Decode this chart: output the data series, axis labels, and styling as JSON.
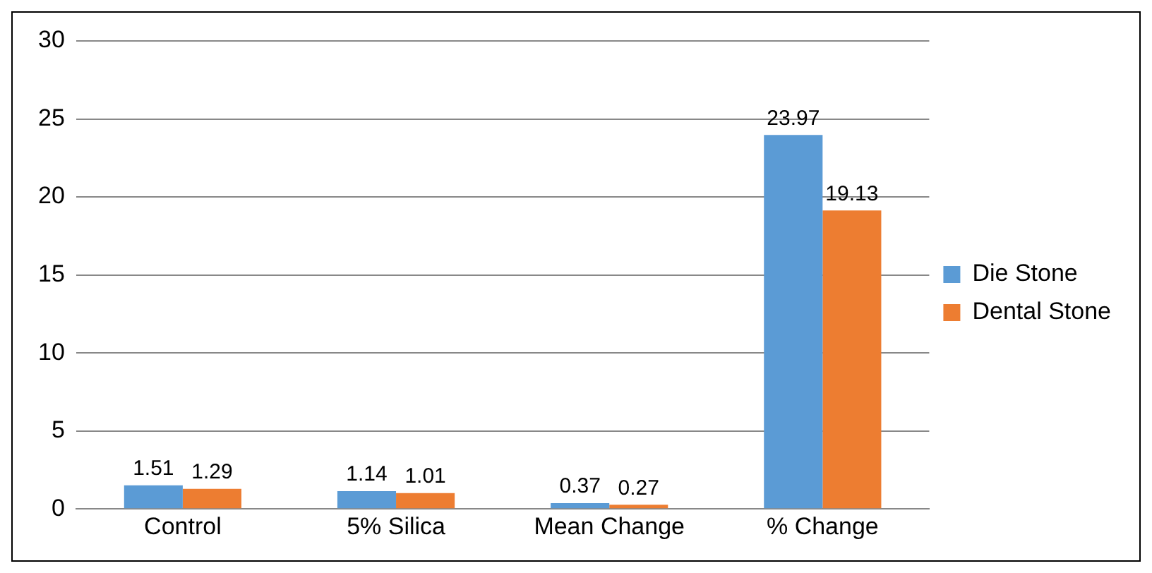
{
  "chart_data": {
    "type": "bar",
    "categories": [
      "Control",
      "5% Silica",
      "Mean Change",
      "% Change"
    ],
    "series": [
      {
        "name": "Die Stone",
        "color": "#5b9bd5",
        "values": [
          1.51,
          1.14,
          0.37,
          23.97
        ]
      },
      {
        "name": "Dental Stone",
        "color": "#ed7d31",
        "values": [
          1.29,
          1.01,
          0.27,
          19.13
        ]
      }
    ],
    "ylim": [
      0,
      30
    ],
    "yticks": [
      0,
      5,
      10,
      15,
      20,
      25,
      30
    ],
    "grid": "y",
    "legend": "right",
    "data_labels": true
  }
}
